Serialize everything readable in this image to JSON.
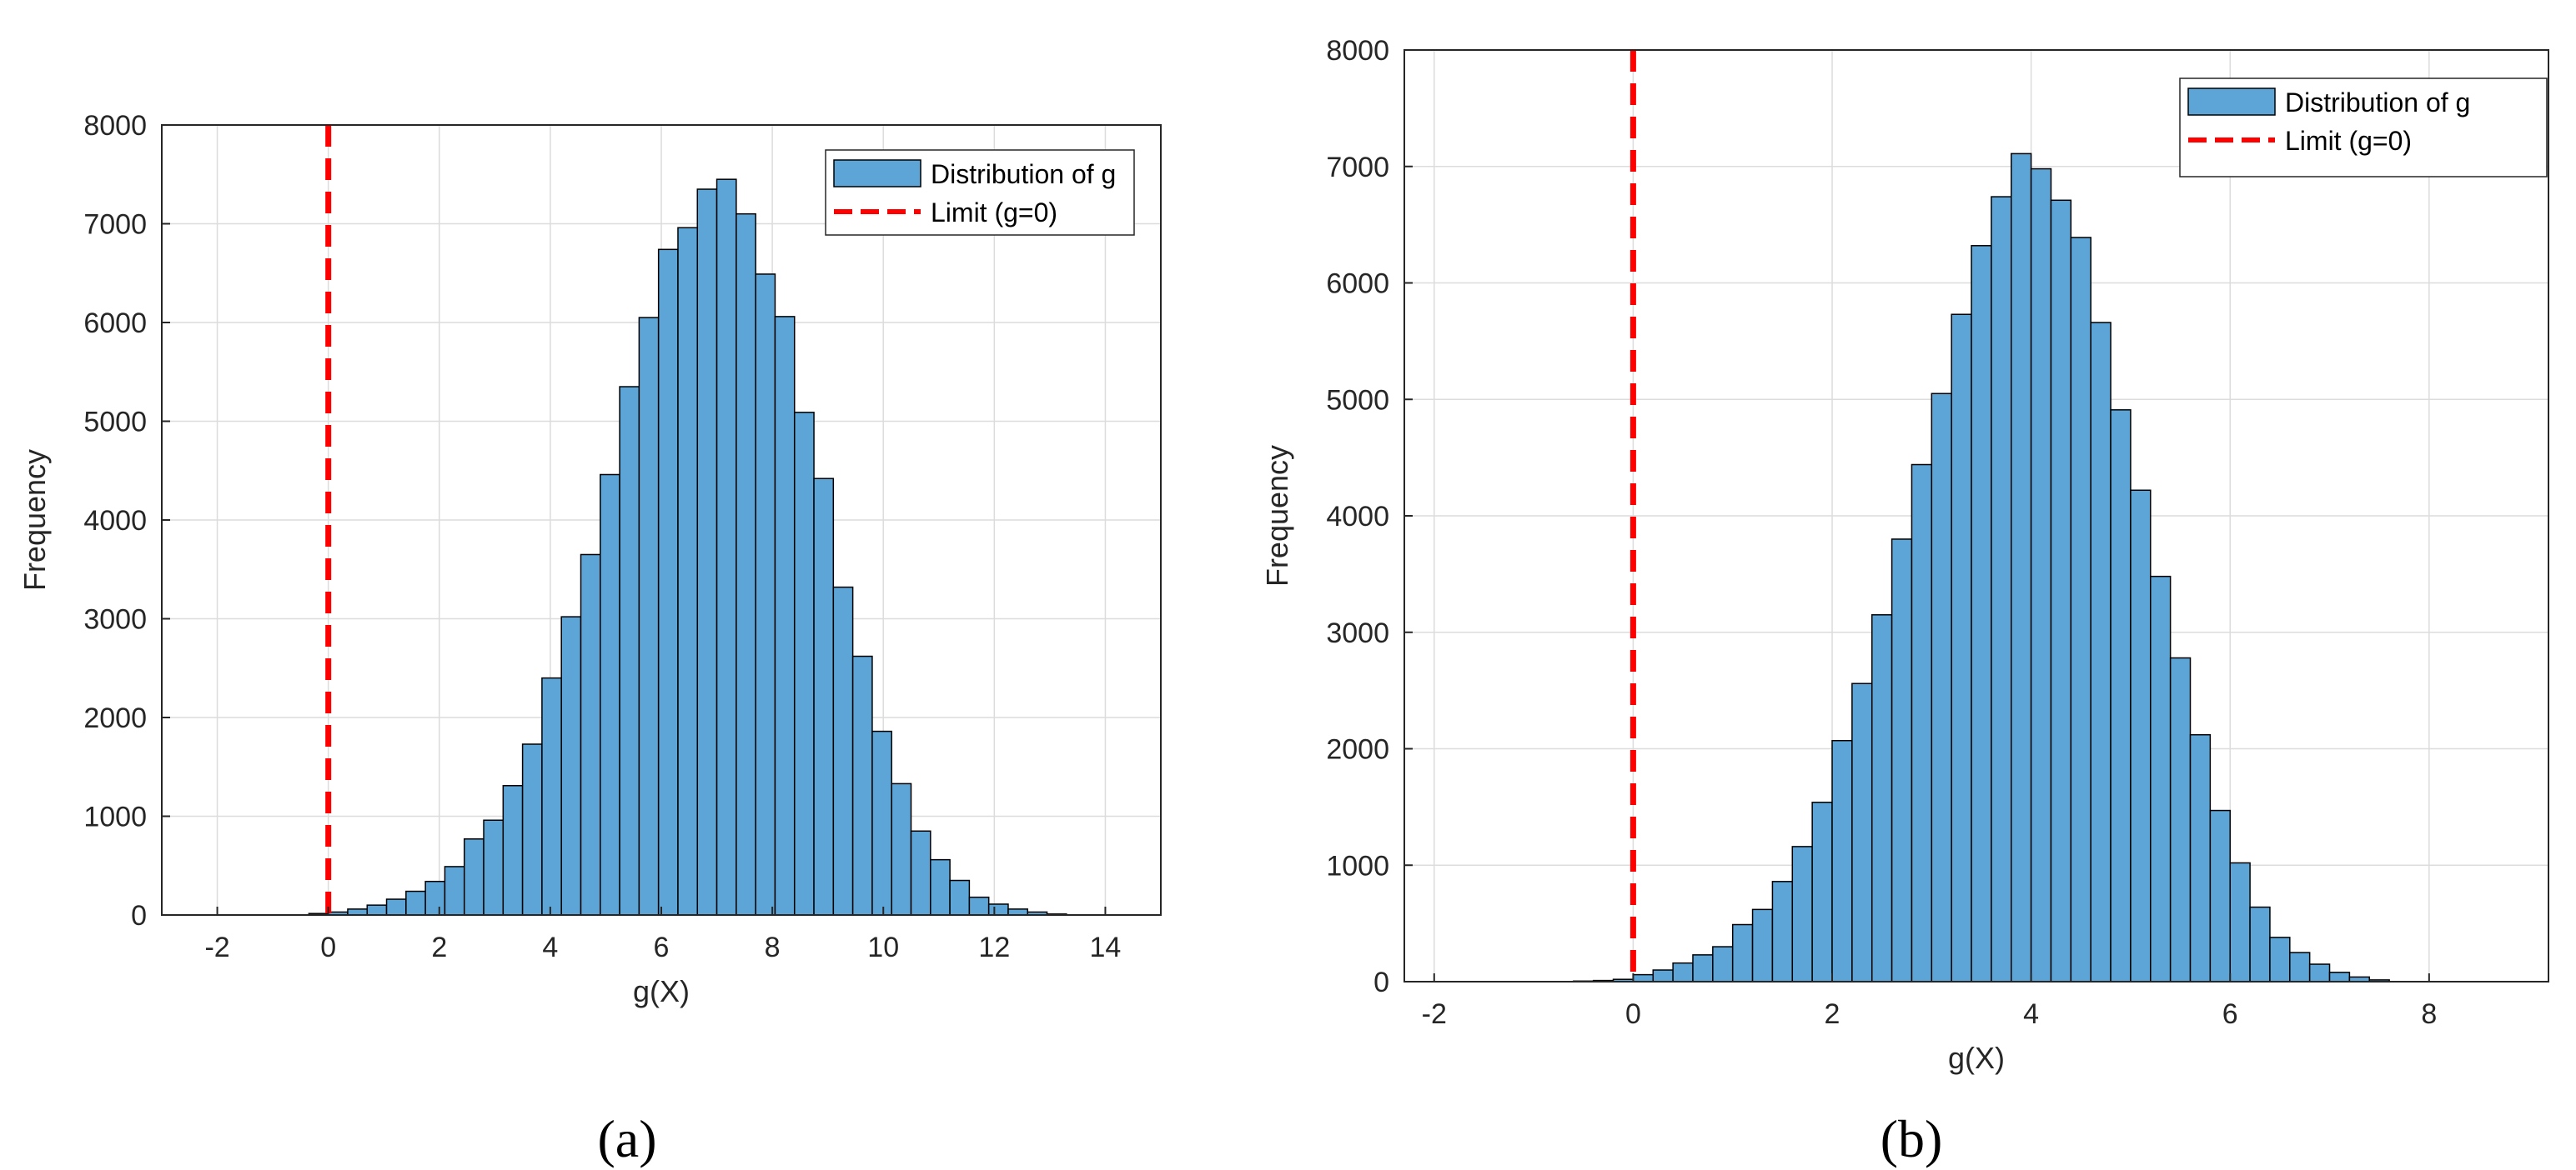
{
  "panels": [
    "(a)",
    "(b)"
  ],
  "chart_data": [
    {
      "type": "bar",
      "xlabel": "g(X)",
      "ylabel": "Frequency",
      "xlim": [
        -3,
        15
      ],
      "ylim": [
        0,
        8000
      ],
      "xticks": [
        -2,
        0,
        2,
        4,
        6,
        8,
        10,
        12,
        14
      ],
      "yticks": [
        0,
        1000,
        2000,
        3000,
        4000,
        5000,
        6000,
        7000,
        8000
      ],
      "grid": true,
      "legend_position": "top-right",
      "legend": [
        "Distribution of g",
        "Limit (g=0)"
      ],
      "bin_width": 0.35,
      "bins_start": -0.35,
      "values": [
        15,
        30,
        60,
        100,
        160,
        240,
        340,
        490,
        770,
        960,
        1310,
        1730,
        2400,
        3020,
        3650,
        4460,
        5350,
        6050,
        6740,
        6960,
        7350,
        7450,
        7100,
        6490,
        6060,
        5090,
        4420,
        3320,
        2620,
        1860,
        1330,
        850,
        560,
        350,
        180,
        110,
        60,
        30,
        10
      ],
      "limit_x": 0,
      "colors": {
        "bar": "#5DA5D6",
        "edge": "#000000",
        "limit": "#FF0000"
      }
    },
    {
      "type": "bar",
      "xlabel": "g(X)",
      "ylabel": "Frequency",
      "xlim": [
        -2.3,
        9.2
      ],
      "ylim": [
        0,
        8000
      ],
      "xticks": [
        -2,
        0,
        2,
        4,
        6,
        8
      ],
      "yticks": [
        0,
        1000,
        2000,
        3000,
        4000,
        5000,
        6000,
        7000,
        8000
      ],
      "grid": true,
      "legend_position": "top-right",
      "legend": [
        "Distribution of g",
        "Limit (g=0)"
      ],
      "bin_width": 0.2,
      "bins_start": -0.6,
      "values": [
        5,
        10,
        20,
        60,
        100,
        160,
        230,
        300,
        490,
        620,
        860,
        1160,
        1540,
        2070,
        2560,
        3150,
        3800,
        4440,
        5050,
        5730,
        6320,
        6740,
        7110,
        6980,
        6710,
        6390,
        5660,
        4910,
        4220,
        3480,
        2780,
        2120,
        1470,
        1020,
        640,
        380,
        250,
        150,
        80,
        40,
        15
      ],
      "limit_x": 0,
      "colors": {
        "bar": "#5DA5D6",
        "edge": "#000000",
        "limit": "#FF0000"
      }
    }
  ]
}
